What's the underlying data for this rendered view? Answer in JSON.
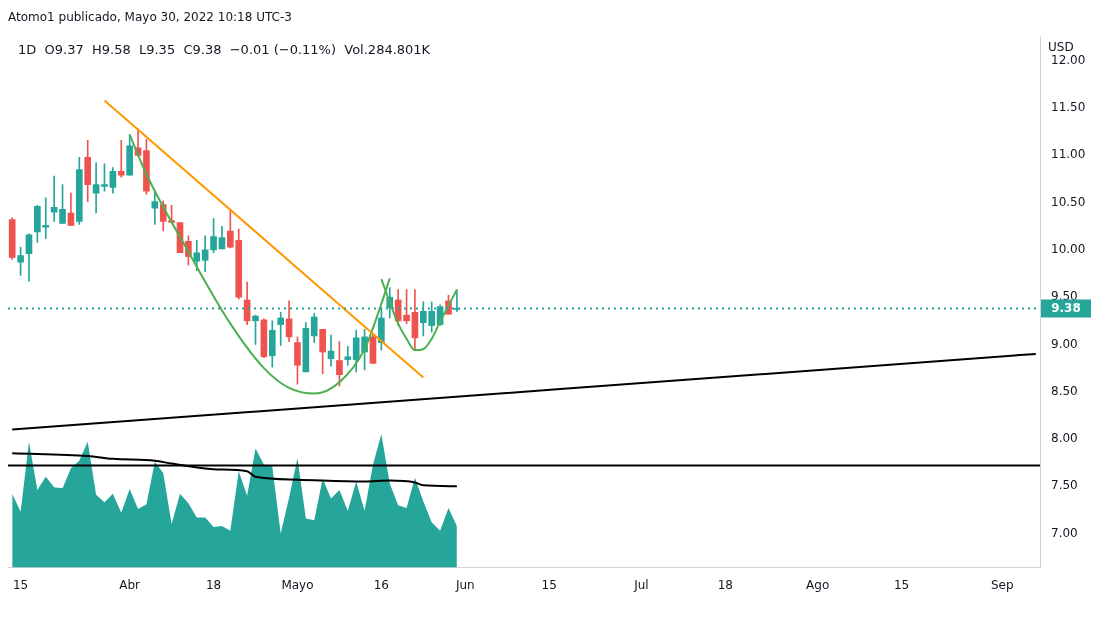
{
  "chart_data": {
    "type": "candlestick",
    "title": "Atomo1 publicado, Mayo 30, 2022 10:18 UTC-3",
    "subtitle": "1D  O9.37  H9.58  L9.35  C9.38  −0.01 (−0.11%)  Vol.284.801K",
    "ylabel": "USD",
    "categories": [
      null,
      "15",
      null,
      null,
      null,
      null,
      null,
      null,
      null,
      null,
      null,
      null,
      null,
      null,
      "Abr",
      null,
      null,
      null,
      null,
      null,
      null,
      null,
      null,
      null,
      "18",
      null,
      null,
      null,
      null,
      null,
      null,
      null,
      null,
      null,
      "Mayo",
      null,
      null,
      null,
      null,
      null,
      null,
      null,
      null,
      null,
      "16",
      null,
      null,
      null,
      null,
      null,
      null,
      null,
      null,
      null,
      "Jun",
      null,
      null,
      null,
      null,
      null,
      null,
      null,
      null,
      null,
      "15",
      null,
      null,
      null,
      null,
      null,
      null,
      null,
      null,
      null,
      null,
      "Jul",
      null,
      null,
      null,
      null,
      null,
      null,
      null,
      null,
      null,
      "18",
      null,
      null,
      null,
      null,
      null,
      null,
      null,
      null,
      null,
      null,
      "Ago",
      null,
      null,
      null,
      null,
      null,
      null,
      null,
      null,
      null,
      "15",
      null,
      null,
      null,
      null,
      null,
      null,
      null,
      null,
      null,
      null,
      null,
      "Sep",
      null,
      null,
      null,
      null
    ],
    "ohlc": [
      [
        10.32,
        10.34,
        9.9,
        9.92
      ],
      [
        9.87,
        10.03,
        9.73,
        9.94
      ],
      [
        9.96,
        10.17,
        9.67,
        10.16
      ],
      [
        10.19,
        10.47,
        10.08,
        10.46
      ],
      [
        10.24,
        10.55,
        10.12,
        10.26
      ],
      [
        10.4,
        10.78,
        10.3,
        10.45
      ],
      [
        10.28,
        10.69,
        10.28,
        10.43
      ],
      [
        10.39,
        10.6,
        10.26,
        10.26
      ],
      [
        10.3,
        10.98,
        10.27,
        10.85
      ],
      [
        10.98,
        11.16,
        10.51,
        10.69
      ],
      [
        10.6,
        10.92,
        10.39,
        10.69
      ],
      [
        10.67,
        10.91,
        10.62,
        10.69
      ],
      [
        10.66,
        10.87,
        10.6,
        10.83
      ],
      [
        10.83,
        11.16,
        10.77,
        10.79
      ],
      [
        10.79,
        11.22,
        10.79,
        11.1
      ],
      [
        11.08,
        11.28,
        10.99,
        11.0
      ],
      [
        11.05,
        11.17,
        10.59,
        10.62
      ],
      [
        10.44,
        10.63,
        10.27,
        10.51
      ],
      [
        10.48,
        10.52,
        10.2,
        10.3
      ],
      [
        10.31,
        10.47,
        10.29,
        10.29
      ],
      [
        10.29,
        10.29,
        9.97,
        9.97
      ],
      [
        10.09,
        10.15,
        9.84,
        9.93
      ],
      [
        9.88,
        10.1,
        9.78,
        9.97
      ],
      [
        9.89,
        10.15,
        9.77,
        10.0
      ],
      [
        10.0,
        10.33,
        9.97,
        10.14
      ],
      [
        10.01,
        10.25,
        10.01,
        10.13
      ],
      [
        10.2,
        10.43,
        10.02,
        10.03
      ],
      [
        10.1,
        10.22,
        9.48,
        9.5
      ],
      [
        9.47,
        9.66,
        9.21,
        9.25
      ],
      [
        9.25,
        9.31,
        9.0,
        9.3
      ],
      [
        9.26,
        9.27,
        8.86,
        8.87
      ],
      [
        8.88,
        9.25,
        8.76,
        9.15
      ],
      [
        9.21,
        9.34,
        8.99,
        9.28
      ],
      [
        9.27,
        9.46,
        9.03,
        9.08
      ],
      [
        9.02,
        9.08,
        8.58,
        8.78
      ],
      [
        8.71,
        9.23,
        8.71,
        9.17
      ],
      [
        9.09,
        9.33,
        9.02,
        9.29
      ],
      [
        9.16,
        9.16,
        8.69,
        8.92
      ],
      [
        8.85,
        9.1,
        8.77,
        8.93
      ],
      [
        8.83,
        9.03,
        8.56,
        8.68
      ],
      [
        8.84,
        8.98,
        8.78,
        8.87
      ],
      [
        8.84,
        9.15,
        8.71,
        9.07
      ],
      [
        8.92,
        9.16,
        8.73,
        9.08
      ],
      [
        9.08,
        9.11,
        8.8,
        8.8
      ],
      [
        9.02,
        9.39,
        8.94,
        9.28
      ],
      [
        9.39,
        9.6,
        9.28,
        9.5
      ],
      [
        9.47,
        9.58,
        9.2,
        9.25
      ],
      [
        9.31,
        9.58,
        9.22,
        9.25
      ],
      [
        9.34,
        9.58,
        8.94,
        9.07
      ],
      [
        9.23,
        9.45,
        9.09,
        9.35
      ],
      [
        9.2,
        9.45,
        9.13,
        9.35
      ],
      [
        9.21,
        9.42,
        9.2,
        9.4
      ],
      [
        9.46,
        9.52,
        9.32,
        9.32
      ],
      [
        9.37,
        9.58,
        9.35,
        9.38
      ],
      null,
      null,
      null,
      null,
      null,
      null,
      null,
      null,
      null,
      null,
      null,
      null,
      null,
      null,
      null,
      null,
      null,
      null,
      null,
      null,
      null,
      null,
      null,
      null,
      null,
      null,
      null,
      null,
      null,
      null,
      null,
      null,
      null,
      null,
      null,
      null,
      null,
      null,
      null,
      null,
      null,
      null,
      null,
      null,
      null,
      null,
      null,
      null,
      null,
      null,
      null,
      null,
      null,
      null,
      null,
      null,
      null,
      null,
      null,
      null,
      null,
      null,
      null,
      null,
      null,
      null,
      null,
      null,
      null
    ],
    "colors": [
      "#ef5350",
      "#26a69a",
      "#26a69a",
      "#26a69a",
      "#26a69a",
      "#26a69a",
      "#26a69a",
      "#ef5350",
      "#26a69a",
      "#ef5350",
      "#26a69a",
      "#26a69a",
      "#26a69a",
      "#ef5350",
      "#26a69a",
      "#ef5350",
      "#ef5350",
      "#26a69a",
      "#ef5350",
      "#ef5350",
      "#ef5350",
      "#ef5350",
      "#26a69a",
      "#26a69a",
      "#26a69a",
      "#26a69a",
      "#ef5350",
      "#ef5350",
      "#ef5350",
      "#26a69a",
      "#ef5350",
      "#26a69a",
      "#26a69a",
      "#ef5350",
      "#ef5350",
      "#26a69a",
      "#26a69a",
      "#ef5350",
      "#26a69a",
      "#ef5350",
      "#26a69a",
      "#26a69a",
      "#26a69a",
      "#ef5350",
      "#26a69a",
      "#26a69a",
      "#ef5350",
      "#ef5350",
      "#ef5350",
      "#26a69a",
      "#26a69a",
      "#26a69a",
      "#ef5350",
      "#26a69a",
      null,
      null,
      null,
      null,
      null,
      null,
      null,
      null,
      null,
      null,
      null,
      null,
      null,
      null,
      null,
      null,
      null,
      null,
      null,
      null,
      null,
      null,
      null,
      null,
      null,
      null,
      null,
      null,
      null,
      null,
      null,
      null,
      null,
      null,
      null,
      null,
      null,
      null,
      null,
      null,
      null,
      null,
      null,
      null,
      null,
      null,
      null,
      null,
      null,
      null,
      null,
      null,
      null,
      null,
      null,
      null,
      null,
      null,
      null,
      null,
      null,
      null,
      null,
      null,
      null,
      null,
      null,
      null,
      null
    ],
    "series": [
      {
        "type": "area",
        "color": "#26a69a",
        "values": [
          7.42,
          7.23,
          7.97,
          7.46,
          7.6,
          7.49,
          7.48,
          7.69,
          7.77,
          7.97,
          7.41,
          7.33,
          7.42,
          7.22,
          7.47,
          7.26,
          7.31,
          7.76,
          7.64,
          7.1,
          7.42,
          7.32,
          7.17,
          7.17,
          7.07,
          7.08,
          7.03,
          7.66,
          7.4,
          7.9,
          7.73,
          7.71,
          7.0,
          7.38,
          7.8,
          7.16,
          7.14,
          7.58,
          7.37,
          7.46,
          7.24,
          7.55,
          7.24,
          7.73,
          8.05,
          7.53,
          7.3,
          7.27,
          7.59,
          7.34,
          7.12,
          7.03,
          7.27,
          7.08,
          null,
          null,
          null,
          null,
          null,
          null,
          null,
          null,
          null,
          null,
          null,
          null,
          null,
          null,
          null,
          null,
          null,
          null,
          null,
          null,
          null,
          null,
          null,
          null,
          null,
          null,
          null,
          null,
          null,
          null,
          null,
          null,
          null,
          null,
          null,
          null,
          null,
          null,
          null,
          null,
          null,
          null,
          null,
          null,
          null,
          null,
          null,
          null,
          null,
          null,
          null,
          null,
          null,
          null,
          null,
          null,
          null,
          null,
          null,
          null,
          null,
          null,
          null,
          null,
          null,
          null,
          null,
          null,
          null
        ]
      },
      {
        "type": "line",
        "color": "#000000",
        "values": [
          7.85,
          null,
          null,
          null,
          null,
          null,
          null,
          null,
          null,
          7.82,
          null,
          null,
          7.79,
          null,
          null,
          null,
          null,
          7.77,
          null,
          7.74,
          null,
          null,
          null,
          null,
          7.68,
          null,
          null,
          null,
          7.66,
          7.6,
          null,
          null,
          null,
          null,
          7.57,
          null,
          null,
          null,
          null,
          null,
          null,
          null,
          7.55,
          null,
          null,
          7.56,
          null,
          null,
          7.54,
          7.51,
          null,
          null,
          null,
          7.5,
          null,
          null,
          null,
          null,
          null,
          null,
          null,
          null,
          null,
          null,
          null,
          null,
          null,
          null,
          null,
          null,
          null,
          null,
          null,
          null,
          null,
          null,
          null,
          null,
          null,
          null,
          null,
          null,
          null,
          null,
          null,
          null,
          null,
          null,
          null,
          null,
          null,
          null,
          null,
          null,
          null,
          null,
          null,
          null,
          null,
          null,
          null,
          null,
          null,
          null,
          null,
          null,
          null,
          null,
          null,
          null,
          null,
          null,
          null,
          null,
          null,
          null,
          null,
          null,
          null,
          null,
          null,
          null,
          null
        ]
      },
      {
        "type": "line",
        "color": "#ff9800",
        "values": [
          null,
          null,
          null,
          null,
          null,
          null,
          null,
          null,
          null,
          null,
          null,
          11.58,
          null,
          null,
          null,
          null,
          null,
          null,
          null,
          null,
          null,
          null,
          null,
          null,
          null,
          null,
          null,
          null,
          null,
          null,
          null,
          null,
          null,
          null,
          null,
          null,
          null,
          null,
          null,
          null,
          null,
          null,
          null,
          null,
          null,
          null,
          null,
          null,
          null,
          8.65,
          null,
          null,
          null,
          null,
          null,
          null,
          null,
          null,
          null,
          null,
          null,
          null,
          null,
          null,
          null,
          null,
          null,
          null,
          null,
          null,
          null,
          null,
          null,
          null,
          null,
          null,
          null,
          null,
          null,
          null,
          null,
          null,
          null,
          null,
          null,
          null,
          null,
          null,
          null,
          null,
          null,
          null,
          null,
          null,
          null,
          null,
          null,
          null,
          null,
          null,
          null,
          null,
          null,
          null,
          null,
          null,
          null,
          null,
          null,
          null,
          null,
          null,
          null,
          null,
          null,
          null,
          null,
          null,
          null,
          null,
          null,
          null,
          null
        ]
      },
      {
        "type": "line",
        "color": "#4caf50",
        "values": [
          null,
          null,
          null,
          null,
          null,
          null,
          null,
          null,
          null,
          null,
          null,
          null,
          null,
          null,
          11.22,
          null,
          10.8,
          null,
          null,
          null,
          null,
          9.98,
          null,
          null,
          null,
          null,
          9.22,
          null,
          null,
          null,
          8.75,
          null,
          null,
          8.54,
          null,
          null,
          8.48,
          null,
          null,
          8.6,
          null,
          null,
          8.95,
          null,
          9.43,
          9.7,
          null,
          null,
          null,
          null,
          null,
          null,
          null,
          null,
          null,
          null,
          null,
          null,
          null,
          null,
          null,
          null,
          null,
          null,
          null,
          null,
          null,
          null,
          null,
          null,
          null,
          null,
          null,
          null,
          null,
          null,
          null,
          null,
          null,
          null,
          null,
          null,
          null,
          null,
          null,
          null,
          null,
          null,
          null,
          null,
          null,
          null,
          null,
          null,
          null,
          null,
          null,
          null,
          null,
          null,
          null,
          null,
          null,
          null,
          null,
          null,
          null,
          null,
          null,
          null,
          null,
          null,
          null,
          null,
          null,
          null,
          null,
          null,
          null,
          null,
          null,
          null,
          null
        ]
      },
      {
        "type": "line",
        "color": "#4caf50",
        "values": [
          null,
          null,
          null,
          null,
          null,
          null,
          null,
          null,
          null,
          null,
          null,
          null,
          null,
          null,
          null,
          null,
          null,
          null,
          null,
          null,
          null,
          null,
          null,
          null,
          null,
          null,
          null,
          null,
          null,
          null,
          null,
          null,
          null,
          null,
          null,
          null,
          null,
          null,
          null,
          null,
          null,
          null,
          null,
          null,
          9.69,
          null,
          9.22,
          9.06,
          8.94,
          8.95,
          9.06,
          9.24,
          9.41,
          9.58,
          null,
          null,
          null,
          null,
          null,
          null,
          null,
          null,
          null,
          null,
          null,
          null,
          null,
          null,
          null,
          null,
          null,
          null,
          null,
          null,
          null,
          null,
          null,
          null,
          null,
          null,
          null,
          null,
          null,
          null,
          null,
          null,
          null,
          null,
          null,
          null,
          null,
          null,
          null,
          null,
          null,
          null,
          null,
          null,
          null,
          null,
          null,
          null,
          null,
          null,
          null,
          null,
          null,
          null,
          null,
          null,
          null,
          null,
          null,
          null,
          null,
          null,
          null,
          null,
          null,
          null,
          null,
          null,
          null
        ]
      },
      {
        "type": "line",
        "color": "#000000",
        "values": [
          8.1,
          null,
          null,
          null,
          null,
          null,
          null,
          null,
          null,
          null,
          null,
          null,
          null,
          null,
          null,
          null,
          null,
          null,
          null,
          null,
          null,
          null,
          null,
          null,
          null,
          null,
          null,
          null,
          null,
          null,
          null,
          null,
          null,
          null,
          null,
          null,
          null,
          null,
          null,
          null,
          null,
          null,
          null,
          null,
          null,
          null,
          null,
          null,
          null,
          null,
          null,
          null,
          null,
          null,
          null,
          null,
          null,
          null,
          null,
          null,
          null,
          null,
          null,
          null,
          null,
          null,
          null,
          null,
          null,
          null,
          null,
          null,
          null,
          null,
          null,
          null,
          null,
          null,
          null,
          null,
          null,
          null,
          null,
          null,
          null,
          null,
          null,
          null,
          null,
          null,
          null,
          null,
          null,
          null,
          null,
          null,
          null,
          null,
          null,
          null,
          null,
          null,
          null,
          null,
          null,
          null,
          null,
          null,
          null,
          null,
          null,
          null,
          null,
          null,
          null,
          null,
          null,
          null,
          null,
          null,
          null,
          null,
          8.9
        ]
      }
    ],
    "ylim": [
      6.64,
      12.26
    ],
    "yticks": [
      {
        "value": 7,
        "label": "7.00"
      },
      {
        "value": 7.5,
        "label": "7.50"
      },
      {
        "value": 8,
        "label": "8.00"
      },
      {
        "value": 8.5,
        "label": "8.50"
      },
      {
        "value": 9,
        "label": "9.00"
      },
      {
        "value": 9.5,
        "label": "9.50"
      },
      {
        "value": 10,
        "label": "10.00"
      },
      {
        "value": 10.5,
        "label": "10.50"
      },
      {
        "value": 11,
        "label": "11.00"
      },
      {
        "value": 11.5,
        "label": "11.50"
      },
      {
        "value": 12,
        "label": "12.00"
      }
    ],
    "ref_lines": [
      {
        "axis": "y",
        "value": 9.38,
        "label": "9.38",
        "color": "#26a69a",
        "line_style": "dotted"
      },
      {
        "axis": "y",
        "value": 7.72,
        "color": "#000000",
        "line_style": "solid"
      }
    ]
  }
}
